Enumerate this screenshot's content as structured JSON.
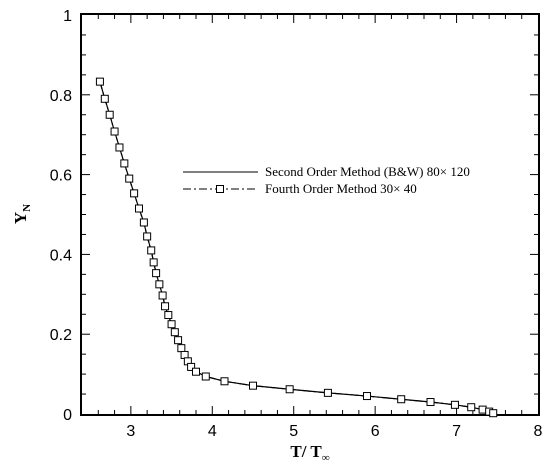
{
  "chart_data": {
    "type": "line",
    "xlabel_main": "T/ T",
    "xlabel_sub": "∞",
    "ylabel_main": "Y",
    "ylabel_sub": "N",
    "xlim": [
      2.4,
      8
    ],
    "ylim": [
      0,
      1
    ],
    "x_ticks": [
      3,
      4,
      5,
      6,
      7,
      8
    ],
    "y_ticks": [
      0,
      0.2,
      0.4,
      0.6,
      0.8,
      1
    ],
    "y_tick_labels": [
      "0",
      "0.2",
      "0.4",
      "0.6",
      "0.8",
      "1"
    ],
    "grid": false,
    "legend_position": "right",
    "series": [
      {
        "name": "Second Order Method (B&W)  80× 120",
        "style": "solid",
        "marker": "none",
        "color": "#000000",
        "points": [
          [
            2.62,
            0.833
          ],
          [
            2.68,
            0.79
          ],
          [
            2.74,
            0.75
          ],
          [
            2.8,
            0.708
          ],
          [
            2.86,
            0.668
          ],
          [
            2.92,
            0.628
          ],
          [
            2.98,
            0.59
          ],
          [
            3.04,
            0.553
          ],
          [
            3.1,
            0.515
          ],
          [
            3.16,
            0.48
          ],
          [
            3.2,
            0.445
          ],
          [
            3.25,
            0.41
          ],
          [
            3.28,
            0.38
          ],
          [
            3.31,
            0.353
          ],
          [
            3.35,
            0.325
          ],
          [
            3.39,
            0.297
          ],
          [
            3.42,
            0.27
          ],
          [
            3.46,
            0.248
          ],
          [
            3.5,
            0.225
          ],
          [
            3.54,
            0.205
          ],
          [
            3.58,
            0.185
          ],
          [
            3.62,
            0.165
          ],
          [
            3.66,
            0.148
          ],
          [
            3.7,
            0.132
          ],
          [
            3.74,
            0.118
          ],
          [
            3.8,
            0.106
          ],
          [
            3.92,
            0.094
          ],
          [
            4.15,
            0.082
          ],
          [
            4.5,
            0.071
          ],
          [
            4.95,
            0.062
          ],
          [
            5.42,
            0.053
          ],
          [
            5.9,
            0.045
          ],
          [
            6.32,
            0.037
          ],
          [
            6.68,
            0.03
          ],
          [
            6.98,
            0.023
          ],
          [
            7.18,
            0.017
          ],
          [
            7.32,
            0.011
          ],
          [
            7.4,
            0.006
          ],
          [
            7.45,
            0.002
          ]
        ]
      },
      {
        "name": "Fourth Order Method   30× 40",
        "style": "dashdot",
        "marker": "square",
        "color": "#000000",
        "points": [
          [
            2.62,
            0.833
          ],
          [
            2.68,
            0.79
          ],
          [
            2.74,
            0.75
          ],
          [
            2.8,
            0.708
          ],
          [
            2.86,
            0.668
          ],
          [
            2.92,
            0.628
          ],
          [
            2.98,
            0.59
          ],
          [
            3.04,
            0.553
          ],
          [
            3.1,
            0.515
          ],
          [
            3.16,
            0.48
          ],
          [
            3.2,
            0.445
          ],
          [
            3.25,
            0.41
          ],
          [
            3.28,
            0.38
          ],
          [
            3.31,
            0.353
          ],
          [
            3.35,
            0.325
          ],
          [
            3.39,
            0.297
          ],
          [
            3.42,
            0.27
          ],
          [
            3.46,
            0.248
          ],
          [
            3.5,
            0.225
          ],
          [
            3.54,
            0.205
          ],
          [
            3.58,
            0.185
          ],
          [
            3.62,
            0.165
          ],
          [
            3.66,
            0.148
          ],
          [
            3.7,
            0.132
          ],
          [
            3.74,
            0.118
          ],
          [
            3.8,
            0.106
          ],
          [
            3.92,
            0.094
          ],
          [
            4.15,
            0.082
          ],
          [
            4.5,
            0.071
          ],
          [
            4.95,
            0.062
          ],
          [
            5.42,
            0.053
          ],
          [
            5.9,
            0.045
          ],
          [
            6.32,
            0.037
          ],
          [
            6.68,
            0.03
          ],
          [
            6.98,
            0.023
          ],
          [
            7.18,
            0.017
          ],
          [
            7.32,
            0.011
          ],
          [
            7.4,
            0.006
          ],
          [
            7.45,
            0.002
          ]
        ]
      }
    ]
  }
}
